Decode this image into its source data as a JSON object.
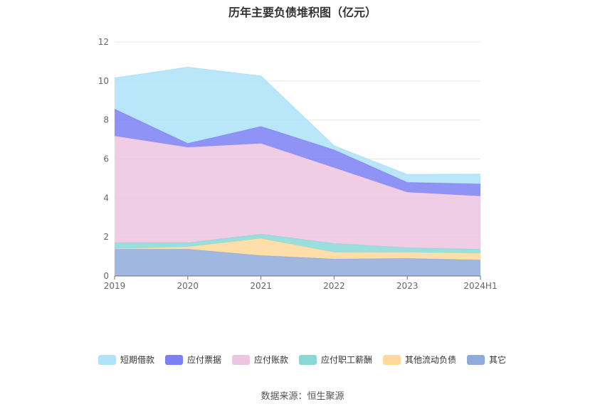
{
  "chart_data": {
    "type": "area",
    "stacked": true,
    "title": "历年主要负债堆积图（亿元）",
    "categories": [
      "2019",
      "2020",
      "2021",
      "2022",
      "2023",
      "2024H1"
    ],
    "ylim": [
      0,
      12
    ],
    "yticks": [
      "0",
      "2",
      "4",
      "6",
      "8",
      "10",
      "12"
    ],
    "grid": true,
    "legend_position": "bottom",
    "series": [
      {
        "name": "其它",
        "color": "#8faadc",
        "values": [
          1.38,
          1.38,
          1.05,
          0.87,
          0.9,
          0.82
        ]
      },
      {
        "name": "其他流动负债",
        "color": "#ffd99a",
        "values": [
          0.02,
          0.12,
          0.88,
          0.35,
          0.32,
          0.35
        ]
      },
      {
        "name": "应付职工薪酬",
        "color": "#88d8d8",
        "values": [
          0.3,
          0.2,
          0.22,
          0.45,
          0.23,
          0.2
        ]
      },
      {
        "name": "应付账款",
        "color": "#ecc5e0",
        "values": [
          5.48,
          4.9,
          4.65,
          3.88,
          2.85,
          2.73
        ]
      },
      {
        "name": "应付票据",
        "color": "#7d80f5",
        "values": [
          1.38,
          0.2,
          0.87,
          0.92,
          0.5,
          0.62
        ]
      },
      {
        "name": "短期借款",
        "color": "#aee2f8",
        "values": [
          1.59,
          3.9,
          2.58,
          0.2,
          0.4,
          0.5
        ]
      }
    ],
    "legend_order": [
      "短期借款",
      "应付票据",
      "应付账款",
      "应付职工薪酬",
      "其他流动负债",
      "其它"
    ]
  },
  "footer": {
    "source": "数据来源：恒生聚源"
  }
}
